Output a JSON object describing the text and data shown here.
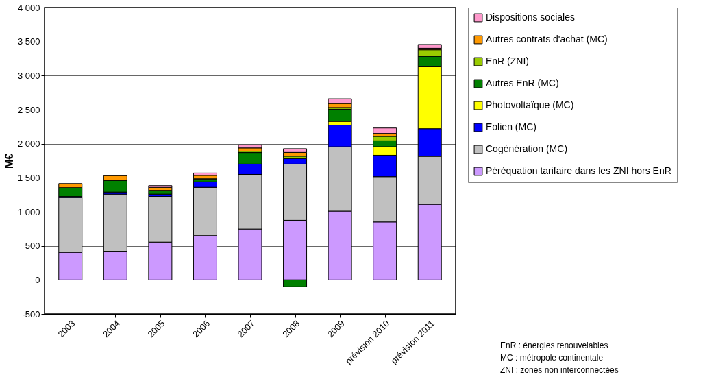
{
  "chart_data": {
    "type": "bar",
    "stacked": true,
    "ylabel": "M€",
    "categories": [
      "2003",
      "2004",
      "2005",
      "2006",
      "2007",
      "2008",
      "2009",
      "prévision 2010",
      "prévision 2011"
    ],
    "series": [
      {
        "name": "Péréquation tarifaire dans les ZNI hors EnR",
        "color": "#cc99ff",
        "values": [
          405,
          420,
          555,
          650,
          747,
          875,
          1010,
          851,
          1110
        ]
      },
      {
        "name": "Cogénération (MC)",
        "color": "#c0c0c0",
        "values": [
          805,
          840,
          670,
          710,
          802,
          826,
          945,
          665,
          705
        ]
      },
      {
        "name": "Eolien (MC)",
        "color": "#0000ff",
        "values": [
          15,
          30,
          35,
          80,
          152,
          81,
          318,
          315,
          406
        ]
      },
      {
        "name": "Photovoltaïque (MC)",
        "color": "#ffff00",
        "values": [
          null,
          null,
          null,
          null,
          null,
          null,
          55,
          125,
          910
        ]
      },
      {
        "name": "Autres EnR (MC)",
        "color": "#008000",
        "values": [
          130,
          170,
          55,
          35,
          169,
          -100,
          178,
          87,
          153
        ]
      },
      {
        "name": "EnR (ZNI)",
        "color": "#99cc00",
        "values": [
          null,
          null,
          null,
          10,
          20,
          35,
          25,
          65,
          95
        ]
      },
      {
        "name": "Autres contrats d'achat (MC)",
        "color": "#ff9900",
        "values": [
          60,
          70,
          45,
          50,
          48,
          55,
          59,
          43,
          23
        ]
      },
      {
        "name": "Dispositions sociales",
        "color": "#ff99cc",
        "values": [
          null,
          null,
          25,
          35,
          45,
          55,
          70,
          80,
          55
        ]
      }
    ],
    "ylim": [
      -500,
      4000
    ],
    "yticks": [
      {
        "value": -500,
        "label": "-500"
      },
      0,
      500,
      {
        "value": 1000,
        "label": "1 000"
      },
      {
        "value": 1500,
        "label": "1 500"
      },
      {
        "value": 2000,
        "label": "2 000"
      },
      {
        "value": 2500,
        "label": "2 500"
      },
      {
        "value": 3000,
        "label": "3 000"
      },
      {
        "value": 3500,
        "label": "3 500"
      },
      {
        "value": 4000,
        "label": "4 000"
      }
    ],
    "grid": "y",
    "legend": "right",
    "annotations": [
      "EnR : énergies renouvelables",
      "MC : métropole continentale",
      "ZNI : zones non interconnectées"
    ]
  }
}
